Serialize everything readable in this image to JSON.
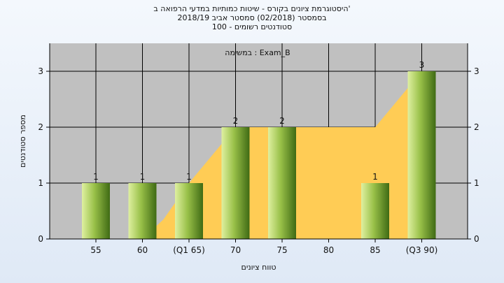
{
  "chart_data": {
    "type": "bar",
    "title_lines": [
      "היסטוגרמת ציונים בקורס - שיטות כמותיות במדעי הרפואה ב'",
      "בסמסטר  (02/2018)  סמסטר אביב 2018/19",
      "סטודנטים רשומים - 100"
    ],
    "annotation": "במשימה : Exam_B",
    "xlabel": "טווח ציונים",
    "ylabel": "מספר סטודנטים",
    "categories": [
      "55",
      "60",
      "(Q1 65)",
      "70",
      "75",
      "80",
      "85",
      "(Q3 90)"
    ],
    "values": [
      1,
      1,
      1,
      2,
      2,
      0,
      1,
      3
    ],
    "data_labels": [
      "1",
      "1",
      "1",
      "2",
      "2",
      "",
      "1",
      "3"
    ],
    "yticks": [
      "0",
      "1",
      "2",
      "3"
    ],
    "ylim": [
      0,
      3.5
    ],
    "grid": true,
    "area_series": {
      "description_values": [
        0,
        0,
        1,
        2,
        2,
        2,
        2,
        3
      ]
    },
    "colors": {
      "plot_bg": "#c0c0c0",
      "bar_light": "#dff0a0",
      "bar_mid": "#98c048",
      "bar_dark": "#3f6a14",
      "area": "#ffcc55",
      "grid": "#000000"
    }
  }
}
